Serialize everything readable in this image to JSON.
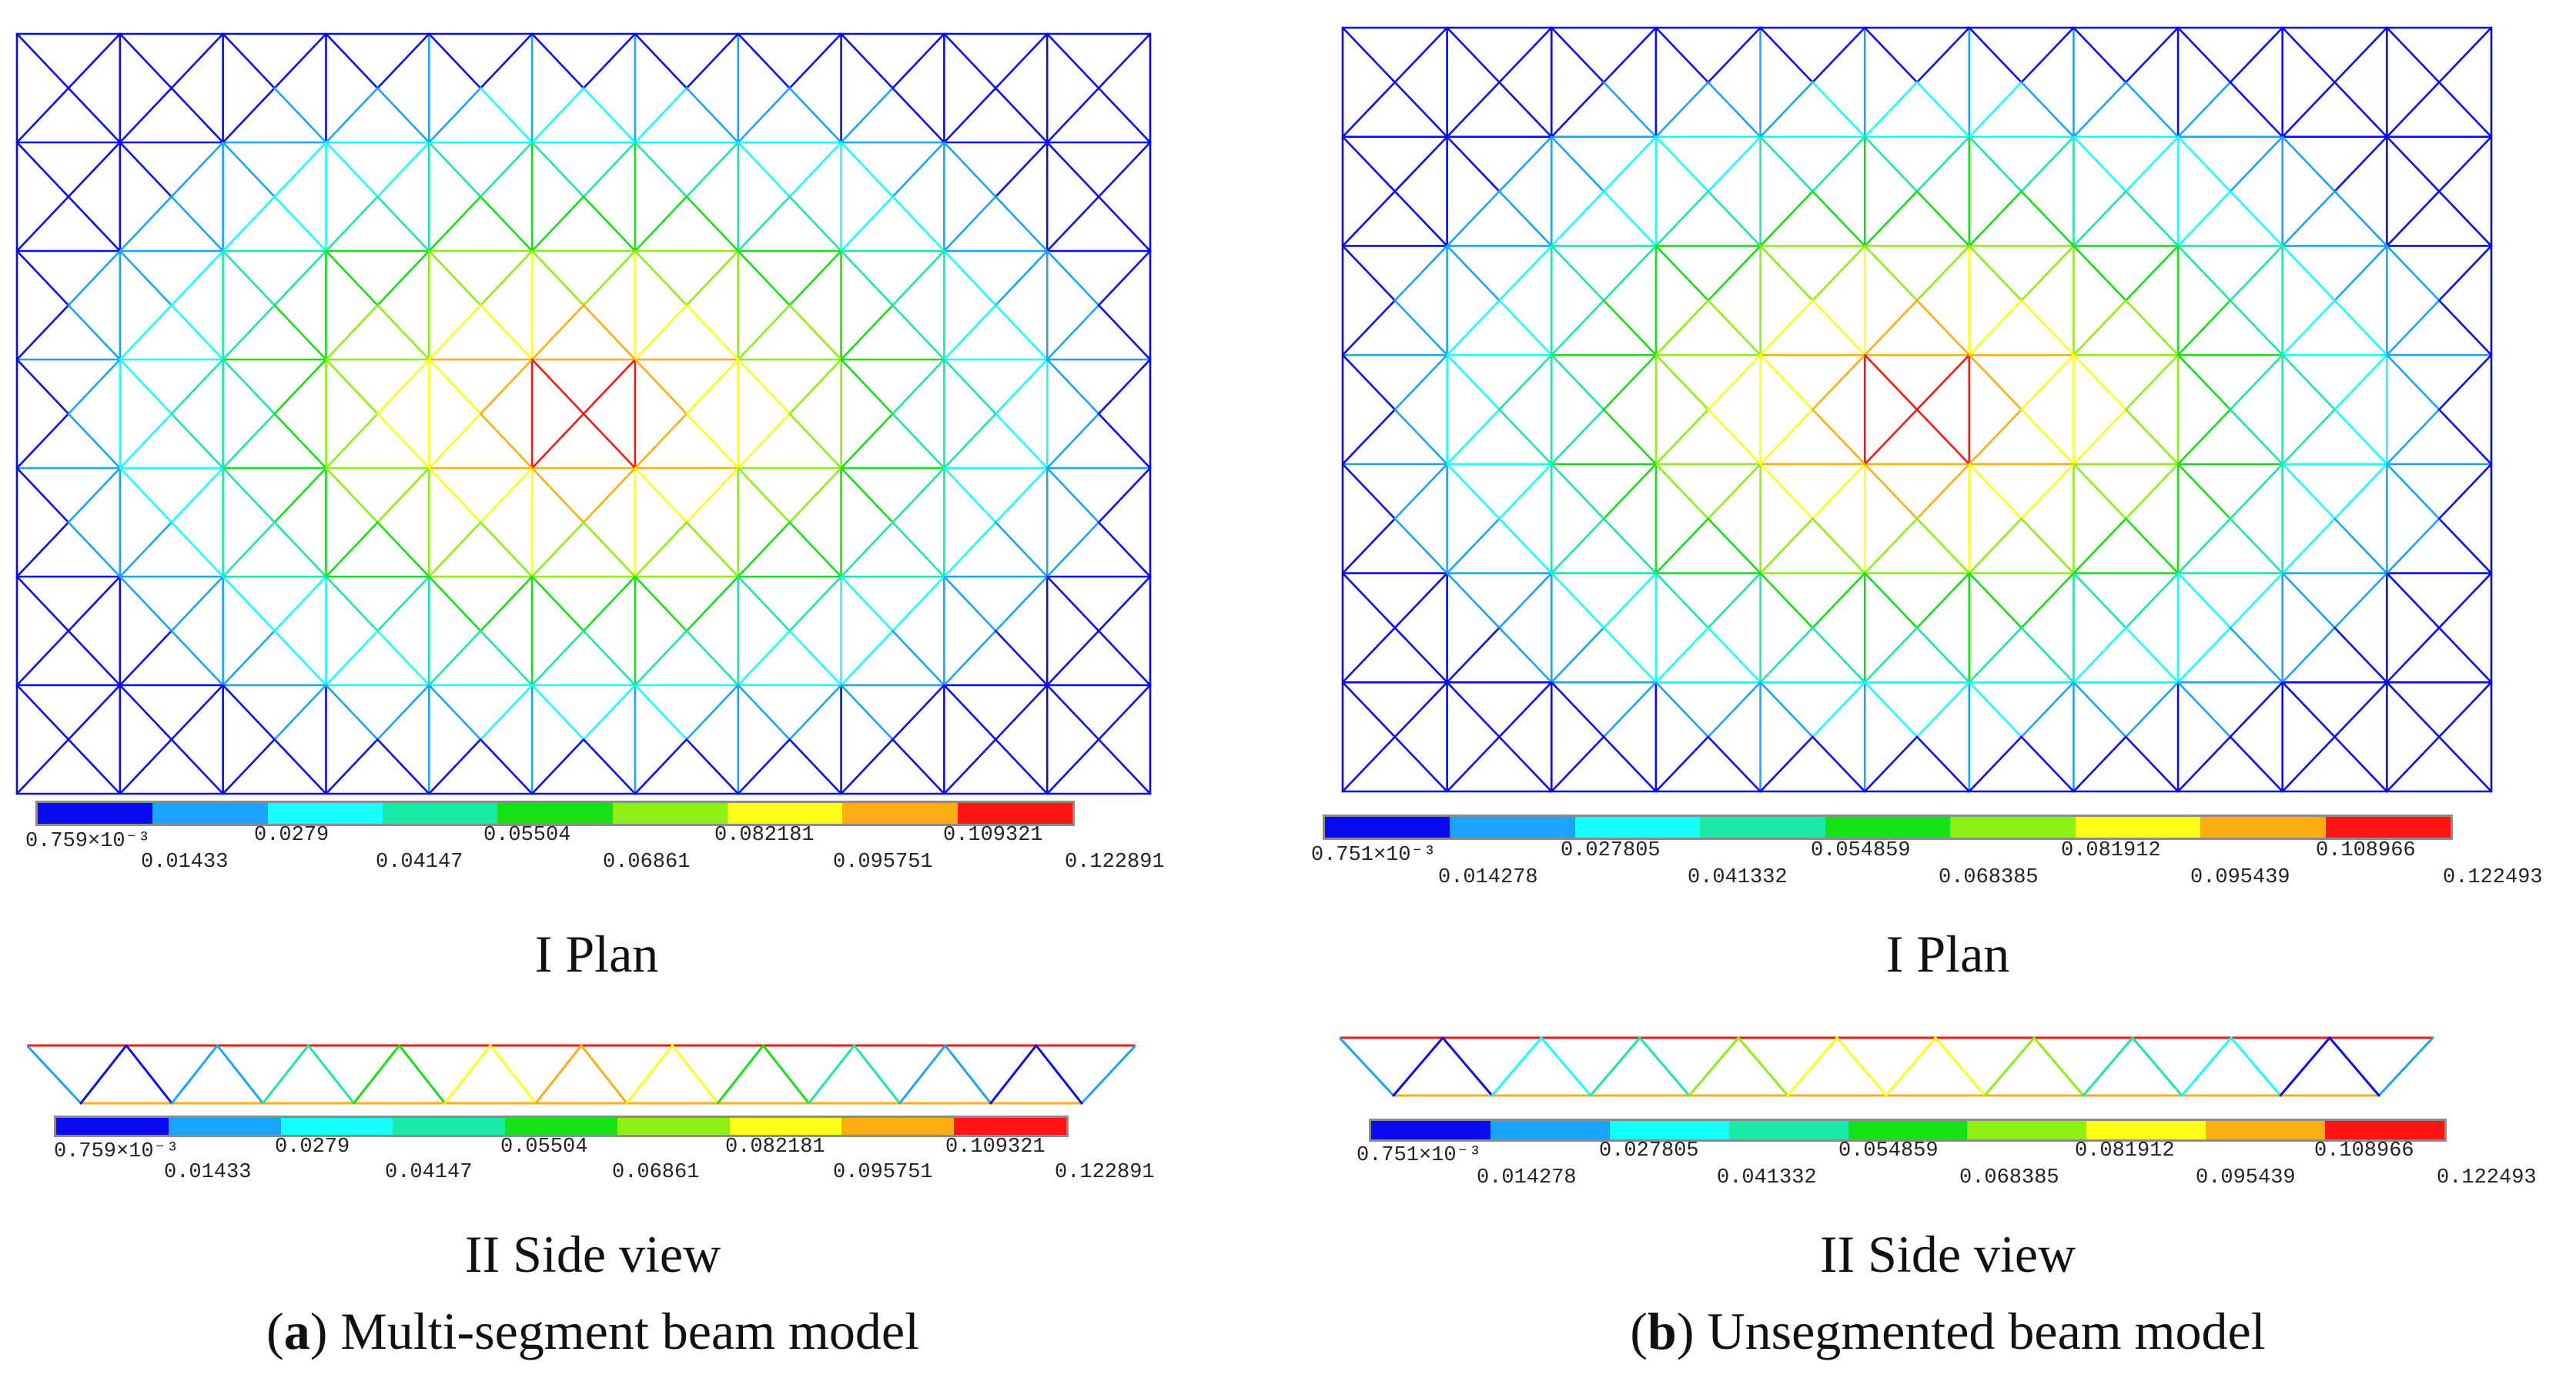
{
  "palette": [
    "#0b0bf0",
    "#1aa3ff",
    "#17ffff",
    "#19e8a8",
    "#16e016",
    "#8ef012",
    "#ffff18",
    "#ffad10",
    "#ff1414"
  ],
  "panels": [
    {
      "id": "a",
      "plan_title": "I Plan",
      "side_title": "II Side view",
      "letter": "a",
      "caption": "Multi-segment beam model",
      "legend": {
        "row1": [
          "0.759×10⁻³",
          "0.0279",
          "0.05504",
          "0.082181",
          "0.109321"
        ],
        "row2": [
          "0.01433",
          "0.04147",
          "0.06861",
          "0.095751",
          "0.122891"
        ]
      }
    },
    {
      "id": "b",
      "plan_title": "I Plan",
      "side_title": "II Side view",
      "letter": "b",
      "caption": "Unsegmented beam model",
      "legend": {
        "row1": [
          "0.751×10⁻³",
          "0.027805",
          "0.054859",
          "0.081912",
          "0.108966"
        ],
        "row2": [
          "0.014278",
          "0.041332",
          "0.068385",
          "0.095439",
          "0.122493"
        ]
      }
    }
  ]
}
